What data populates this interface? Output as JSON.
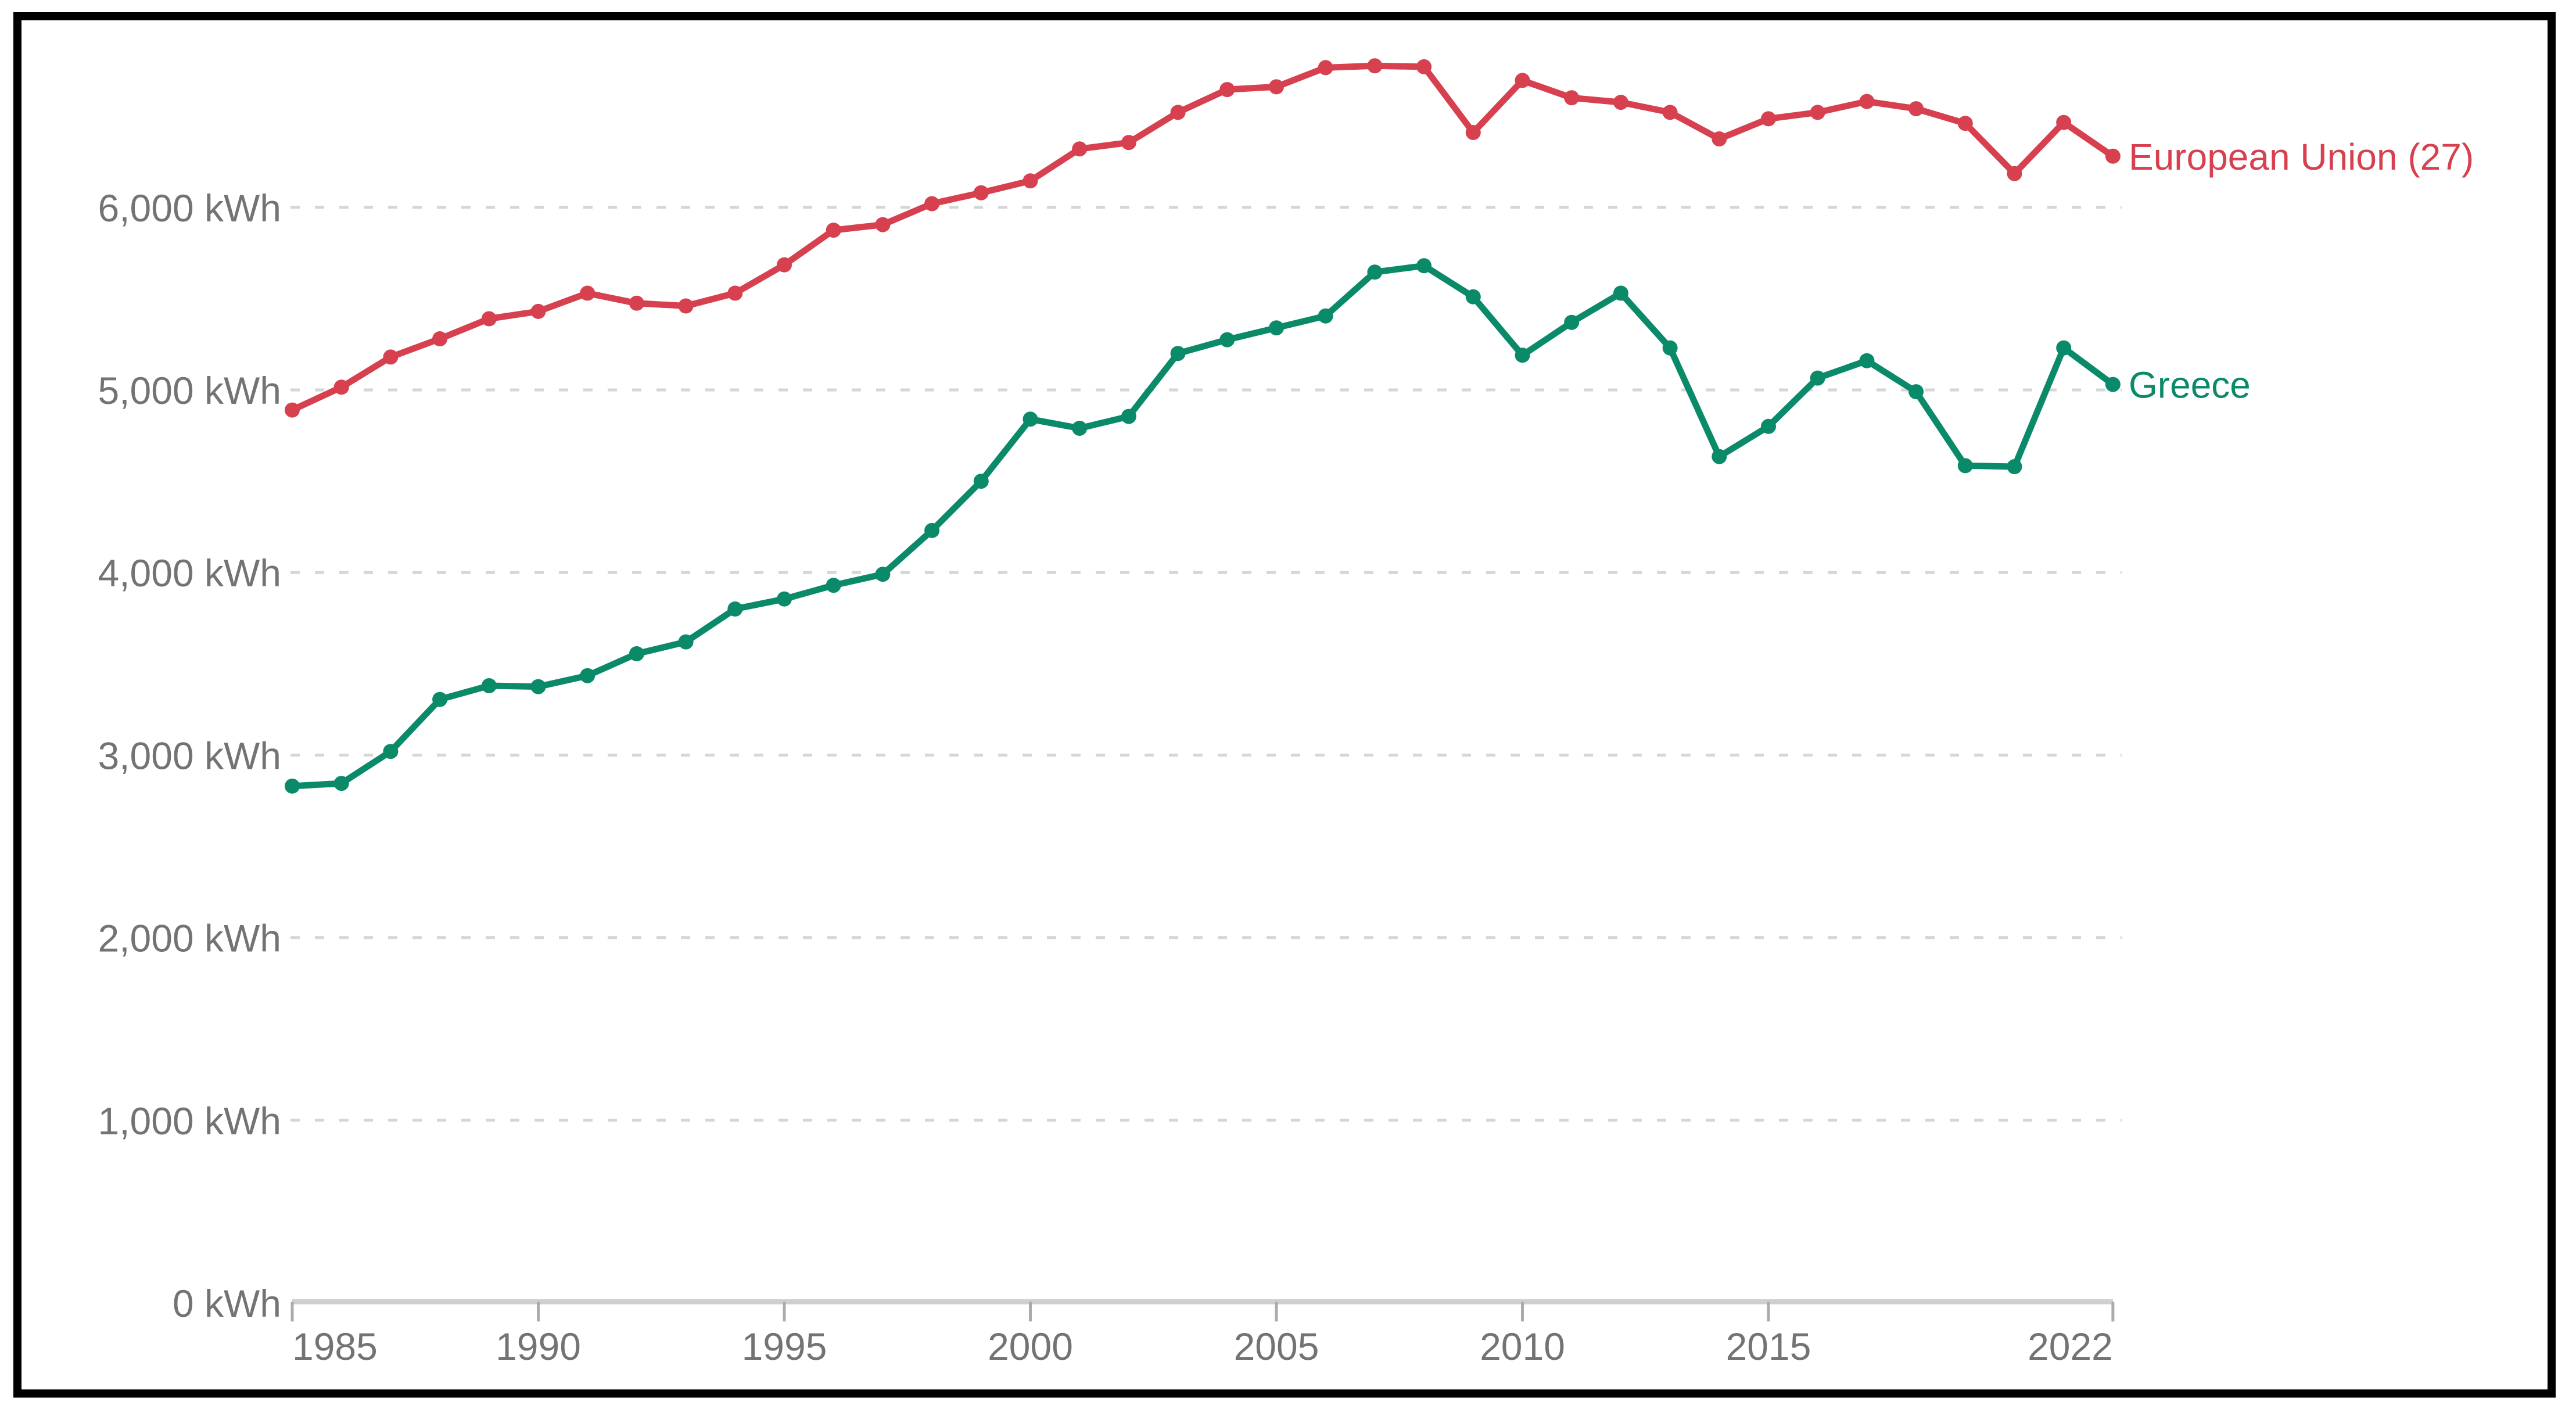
{
  "chart_data": {
    "type": "line",
    "unit": "kWh",
    "x": [
      1985,
      1986,
      1987,
      1988,
      1989,
      1990,
      1991,
      1992,
      1993,
      1994,
      1995,
      1996,
      1997,
      1998,
      1999,
      2000,
      2001,
      2002,
      2003,
      2004,
      2005,
      2006,
      2007,
      2008,
      2009,
      2010,
      2011,
      2012,
      2013,
      2014,
      2015,
      2016,
      2017,
      2018,
      2019,
      2020,
      2021,
      2022
    ],
    "series": [
      {
        "name": "European Union (27)",
        "color": "#d6404f",
        "values": [
          4890,
          5015,
          5180,
          5280,
          5390,
          5430,
          5530,
          5475,
          5460,
          5530,
          5685,
          5875,
          5905,
          6020,
          6080,
          6145,
          6320,
          6355,
          6520,
          6645,
          6660,
          6765,
          6775,
          6770,
          6410,
          6695,
          6600,
          6575,
          6520,
          6375,
          6485,
          6520,
          6580,
          6540,
          6460,
          6185,
          6465,
          6280
        ]
      },
      {
        "name": "Greece",
        "color": "#0b8a6a",
        "values": [
          2830,
          2845,
          3020,
          3305,
          3380,
          3375,
          3435,
          3555,
          3620,
          3800,
          3855,
          3930,
          3990,
          4230,
          4500,
          4840,
          4790,
          4855,
          5200,
          5275,
          5340,
          5405,
          5645,
          5680,
          5510,
          5190,
          5370,
          5530,
          5230,
          4635,
          4800,
          5065,
          5160,
          4990,
          4585,
          4580,
          5230,
          5030
        ]
      }
    ],
    "y_ticks": [
      {
        "value": 6000,
        "label": "6,000 kWh"
      },
      {
        "value": 5000,
        "label": "5,000 kWh"
      },
      {
        "value": 4000,
        "label": "4,000 kWh"
      },
      {
        "value": 3000,
        "label": "3,000 kWh"
      },
      {
        "value": 2000,
        "label": "2,000 kWh"
      },
      {
        "value": 1000,
        "label": "1,000 kWh"
      },
      {
        "value": 0,
        "label": "0 kWh"
      }
    ],
    "x_tick_years": [
      1985,
      1990,
      1995,
      2000,
      2005,
      2010,
      2015,
      2022
    ],
    "x_tick_labels": [
      "1985",
      "1990",
      "1995",
      "2000",
      "2005",
      "2010",
      "2015",
      "2022"
    ],
    "xlim": [
      1985,
      2022
    ],
    "ylim": [
      0,
      6800
    ],
    "grid": "dotted-horizontal",
    "legend_position": "line-end-labels"
  },
  "colors": {
    "eu_line": "#d6404f",
    "greece_line": "#0b8a6a",
    "grid": "#d6d6d6",
    "axis_line": "#cfcfcf",
    "tick": "#ababab",
    "label_text": "#737373",
    "frame": "#000000",
    "background": "#ffffff"
  }
}
